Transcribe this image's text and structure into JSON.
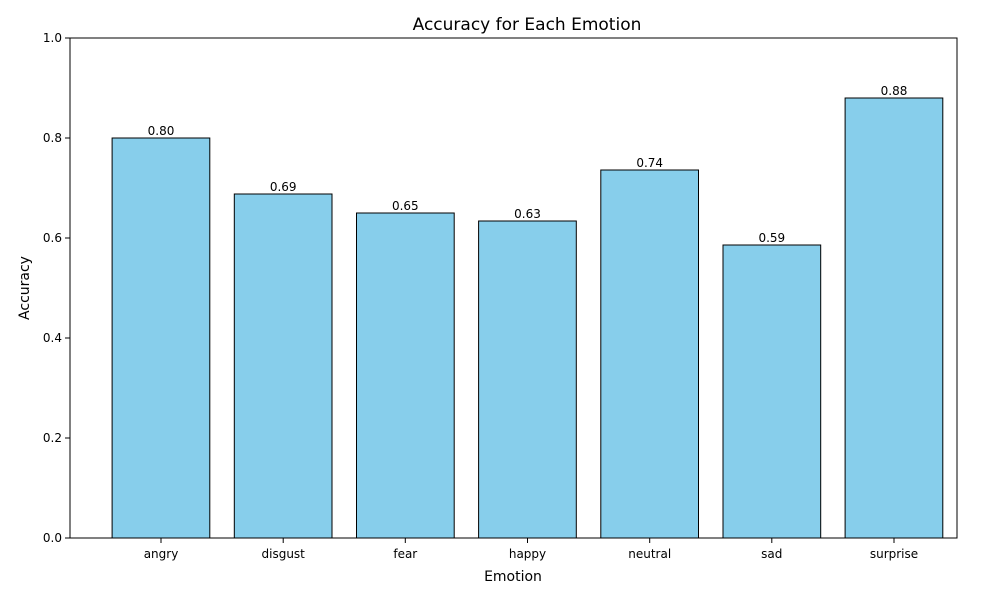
{
  "chart_data": {
    "type": "bar",
    "title": "Accuracy for Each Emotion",
    "xlabel": "Emotion",
    "ylabel": "Accuracy",
    "categories": [
      "angry",
      "disgust",
      "fear",
      "happy",
      "neutral",
      "sad",
      "surprise"
    ],
    "values": [
      0.8,
      0.688,
      0.65,
      0.634,
      0.736,
      0.586,
      0.88
    ],
    "value_labels": [
      "0.80",
      "0.69",
      "0.65",
      "0.63",
      "0.74",
      "0.59",
      "0.88"
    ],
    "ylim": [
      0,
      1
    ],
    "yticks": [
      "0.0",
      "0.2",
      "0.4",
      "0.6",
      "0.8",
      "1.0"
    ],
    "ytick_values": [
      0,
      0.2,
      0.4,
      0.6,
      0.8,
      1.0
    ],
    "grid": false,
    "legend": "none",
    "bar_color": "#87CEEB",
    "bar_edge_color": "#000000"
  }
}
